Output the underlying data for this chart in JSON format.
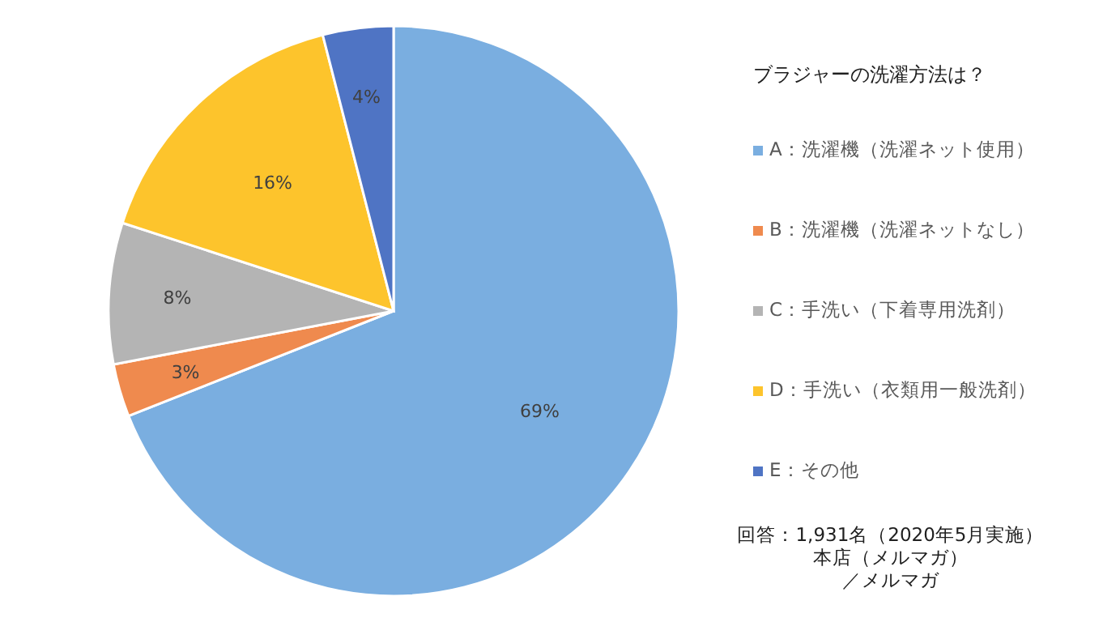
{
  "chart_data": {
    "type": "pie",
    "title": "ブラジャーの洗濯方法は？",
    "categories": [
      "A：洗濯機（洗濯ネット使用）",
      "B：洗濯機（洗濯ネットなし）",
      "C：手洗い（下着専用洗剤）",
      "D：手洗い（衣類用一般洗剤）",
      "E：その他"
    ],
    "values": [
      69,
      3,
      8,
      16,
      4
    ],
    "colors": [
      "#7aaee0",
      "#ef8a4e",
      "#b4b4b4",
      "#fdc42c",
      "#4f74c4"
    ],
    "value_labels": [
      "69%",
      "3%",
      "8%",
      "16%",
      "4%"
    ],
    "legend": "right",
    "annotations": [
      "回答：1,931名（2020年5月実施）",
      "本店（メルマガ）",
      "／メルマガ"
    ]
  }
}
